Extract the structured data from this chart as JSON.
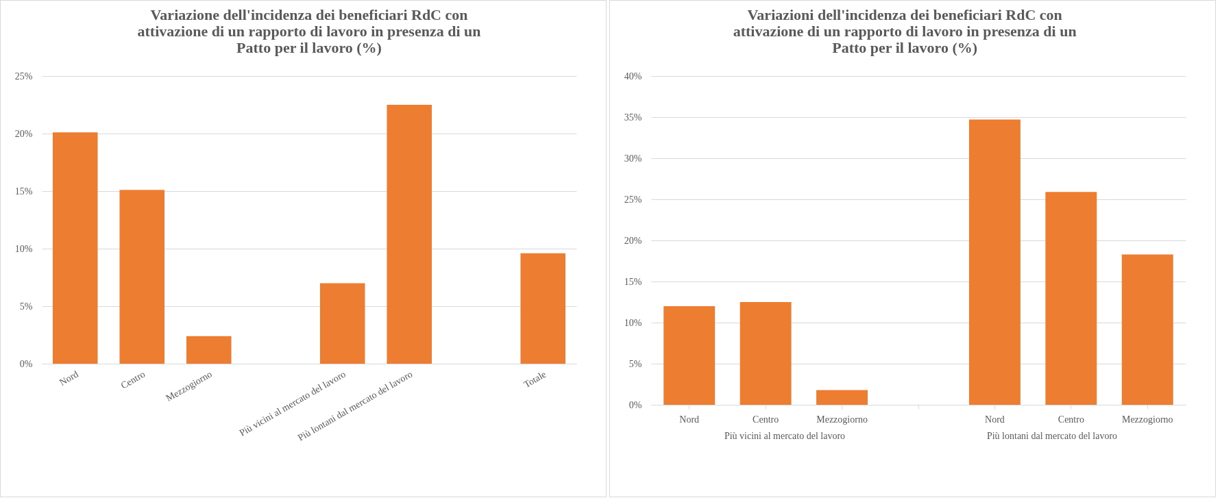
{
  "chart_data": [
    {
      "type": "bar",
      "title": "Variazione dell'incidenza dei beneficiari RdC con attivazione di un rapporto di lavoro in presenza di un Patto per il lavoro (%)",
      "categories": [
        "Nord",
        "Centro",
        "Mezzogiorno",
        null,
        "Più vicini al mercato del lavoro",
        "Più lontani dal mercato del lavoro",
        null,
        "Totale"
      ],
      "values": [
        20.1,
        15.1,
        2.4,
        null,
        7.0,
        22.5,
        null,
        9.6
      ],
      "color": "#ed7d31",
      "ylim": [
        0,
        25
      ],
      "yticks": [
        {
          "value": 0,
          "label": "0%"
        },
        {
          "value": 5,
          "label": "5%"
        },
        {
          "value": 10,
          "label": "10%"
        },
        {
          "value": 15,
          "label": "15%"
        },
        {
          "value": 20,
          "label": "20%"
        },
        {
          "value": 25,
          "label": "25%"
        }
      ],
      "grid": "y"
    },
    {
      "type": "bar",
      "title": "Variazioni dell'incidenza dei beneficiari RdC con attivazione di un rapporto di lavoro in presenza di un Patto per il lavoro (%)",
      "categories": [
        "Nord",
        "Centro",
        "Mezzogiorno",
        null,
        "Nord",
        "Centro",
        "Mezzogiorno"
      ],
      "values": [
        12.0,
        12.5,
        1.8,
        null,
        34.7,
        25.9,
        18.3
      ],
      "color": "#ed7d31",
      "ylim": [
        0,
        40
      ],
      "yticks": [
        {
          "value": 0,
          "label": "0%"
        },
        {
          "value": 5,
          "label": "5%"
        },
        {
          "value": 10,
          "label": "10%"
        },
        {
          "value": 15,
          "label": "15%"
        },
        {
          "value": 20,
          "label": "20%"
        },
        {
          "value": 25,
          "label": "25%"
        },
        {
          "value": 30,
          "label": "30%"
        },
        {
          "value": 35,
          "label": "35%"
        },
        {
          "value": 40,
          "label": "40%"
        }
      ],
      "grid": "y",
      "annotations": [
        "Più vicini al mercato del lavoro",
        "Più lontani dal mercato del lavoro"
      ]
    }
  ]
}
